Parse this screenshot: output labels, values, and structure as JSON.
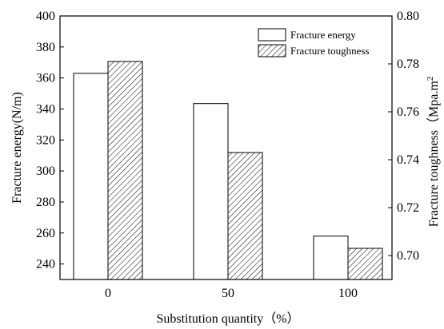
{
  "chart_data": {
    "type": "bar",
    "xlabel": "Substitution quantity（%）",
    "categories": [
      "0",
      "50",
      "100"
    ],
    "y_left": {
      "label": "Fracture energy(N/m)",
      "ylim": [
        230,
        400
      ],
      "ticks": [
        240,
        260,
        280,
        300,
        320,
        340,
        360,
        380,
        400
      ]
    },
    "y_right": {
      "label": "Fracture toughness（Mpa.m",
      "label_superscript": "2",
      "ylim": [
        0.69,
        0.8
      ],
      "ticks": [
        "0.70",
        "0.72",
        "0.74",
        "0.76",
        "0.78",
        "0.80"
      ]
    },
    "series": [
      {
        "name": "Fracture energy",
        "axis": "left",
        "fill": "#ffffff",
        "values": [
          363,
          343.5,
          258
        ]
      },
      {
        "name": "Fracture toughness",
        "axis": "right",
        "fill": "hatch",
        "values": [
          0.781,
          0.743,
          0.703
        ]
      }
    ],
    "legend_position": "top-right",
    "grid": false
  }
}
